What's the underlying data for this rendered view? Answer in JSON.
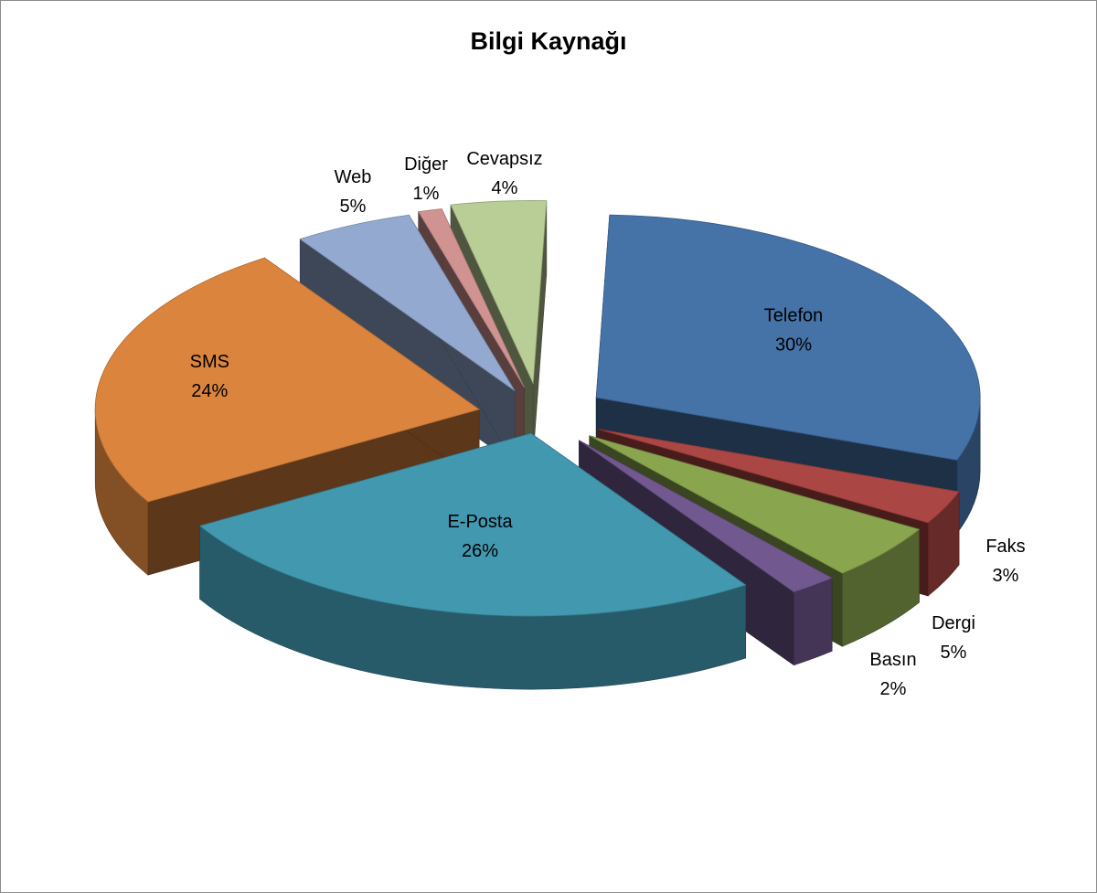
{
  "chart_data": {
    "type": "pie",
    "title": "Bilgi Kaynağı",
    "style": "3d-exploded",
    "legend": "none",
    "slices": [
      {
        "label": "Telefon",
        "value": 30,
        "value_label": "30%",
        "color": "#4572a7"
      },
      {
        "label": "Faks",
        "value": 3,
        "value_label": "3%",
        "color": "#aa4643"
      },
      {
        "label": "Dergi",
        "value": 5,
        "value_label": "5%",
        "color": "#89a54e"
      },
      {
        "label": "Basın",
        "value": 2,
        "value_label": "2%",
        "color": "#71588f"
      },
      {
        "label": "E-Posta",
        "value": 26,
        "value_label": "26%",
        "color": "#4198af"
      },
      {
        "label": "SMS",
        "value": 24,
        "value_label": "24%",
        "color": "#db843d"
      },
      {
        "label": "Web",
        "value": 5,
        "value_label": "5%",
        "color": "#93a9cf"
      },
      {
        "label": "Diğer",
        "value": 1,
        "value_label": "1%",
        "color": "#d19392"
      },
      {
        "label": "Cevapsız",
        "value": 4,
        "value_label": "4%",
        "color": "#b9cd96"
      }
    ]
  }
}
